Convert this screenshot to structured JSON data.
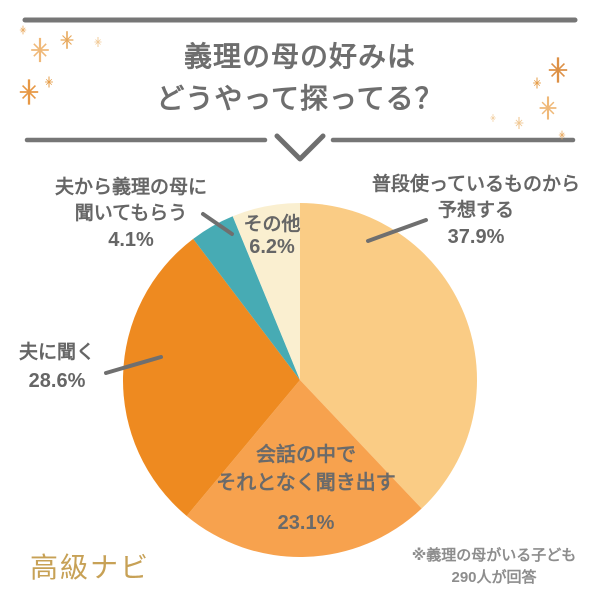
{
  "header": {
    "title_line1": "義理の母の好みは",
    "title_line2": "どうやって探ってる？"
  },
  "chart_data": {
    "type": "pie",
    "title": "義理の母の好みはどうやって探ってる？",
    "categories": [
      "普段使っているものから予想する",
      "会話の中でそれとなく聞き出す",
      "夫に聞く",
      "夫から義理の母に聞いてもらう",
      "その他"
    ],
    "values": [
      37.9,
      23.1,
      28.6,
      4.1,
      6.2
    ],
    "unit": "%",
    "colors": [
      "#FACC85",
      "#F7A24E",
      "#EE8A20",
      "#47ABB4",
      "#FAEFD0"
    ],
    "start_angle_deg": 0,
    "direction": "clockwise",
    "legend": "none",
    "label_color": "#666666",
    "note": "※義理の母がいる子ども290人が回答"
  },
  "labels": {
    "guess": {
      "line1": "普段使っているものから",
      "line2": "予想する",
      "pct": "37.9%"
    },
    "conversation": {
      "line1": "会話の中で",
      "line2": "それとなく聞き出す",
      "pct": "23.1%"
    },
    "husband": {
      "line1": "夫に聞く",
      "pct": "28.6%"
    },
    "via_husband": {
      "line1": "夫から義理の母に",
      "line2": "聞いてもらう",
      "pct": "4.1%"
    },
    "other": {
      "line1": "その他",
      "pct": "6.2%"
    }
  },
  "footer": {
    "brand": "高級ナビ",
    "note_line1": "※義理の母がいる子ども",
    "note_line2": "290人が回答"
  },
  "style": {
    "text_gray": "#6e6e6e",
    "line_gray": "#767676",
    "brand_gold": "#C7A156"
  }
}
